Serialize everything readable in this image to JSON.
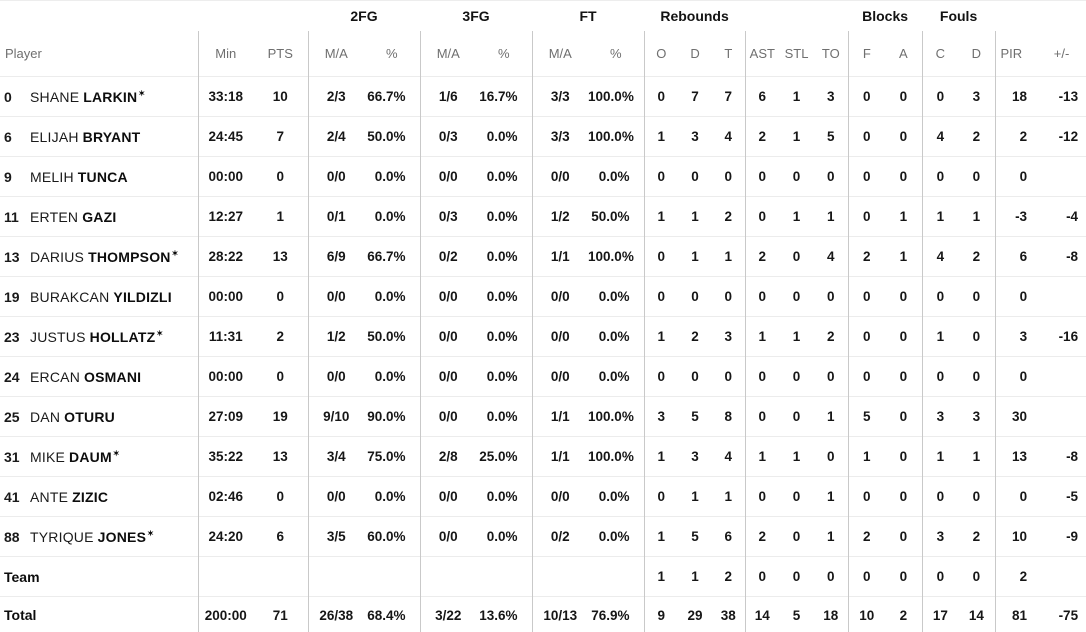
{
  "icons": {
    "starter_icon": "✶"
  },
  "colors": {
    "header_gray": "#6f6f6f",
    "divider": "#c9c9c9",
    "row_line": "#ececec",
    "text": "#131313"
  },
  "header": {
    "groups": {
      "fg2": "2FG",
      "fg3": "3FG",
      "ft": "FT",
      "rebounds": "Rebounds",
      "blocks": "Blocks",
      "fouls": "Fouls"
    },
    "player": "Player",
    "min": "Min",
    "pts": "PTS",
    "fg2_ma": "M/A",
    "fg2_pct": "%",
    "fg3_ma": "M/A",
    "fg3_pct": "%",
    "ft_ma": "M/A",
    "ft_pct": "%",
    "reb_o": "O",
    "reb_d": "D",
    "reb_t": "T",
    "ast": "AST",
    "stl": "STL",
    "to": "TO",
    "blk_f": "F",
    "blk_a": "A",
    "foul_c": "C",
    "foul_d": "D",
    "pir": "PIR",
    "pm": "+/-"
  },
  "rows": [
    {
      "type": "player",
      "number": "0",
      "first": "SHANE",
      "last": "LARKIN",
      "starter": true,
      "min": "33:18",
      "pts": "10",
      "fg2_ma": "2/3",
      "fg2_pct": "66.7%",
      "fg3_ma": "1/6",
      "fg3_pct": "16.7%",
      "ft_ma": "3/3",
      "ft_pct": "100.0%",
      "reb_o": "0",
      "reb_d": "7",
      "reb_t": "7",
      "ast": "6",
      "stl": "1",
      "to": "3",
      "blk_f": "0",
      "blk_a": "0",
      "foul_c": "0",
      "foul_d": "3",
      "pir": "18",
      "pm": "-13"
    },
    {
      "type": "player",
      "number": "6",
      "first": "ELIJAH",
      "last": "BRYANT",
      "starter": false,
      "min": "24:45",
      "pts": "7",
      "fg2_ma": "2/4",
      "fg2_pct": "50.0%",
      "fg3_ma": "0/3",
      "fg3_pct": "0.0%",
      "ft_ma": "3/3",
      "ft_pct": "100.0%",
      "reb_o": "1",
      "reb_d": "3",
      "reb_t": "4",
      "ast": "2",
      "stl": "1",
      "to": "5",
      "blk_f": "0",
      "blk_a": "0",
      "foul_c": "4",
      "foul_d": "2",
      "pir": "2",
      "pm": "-12"
    },
    {
      "type": "player",
      "number": "9",
      "first": "MELIH",
      "last": "TUNCA",
      "starter": false,
      "min": "00:00",
      "pts": "0",
      "fg2_ma": "0/0",
      "fg2_pct": "0.0%",
      "fg3_ma": "0/0",
      "fg3_pct": "0.0%",
      "ft_ma": "0/0",
      "ft_pct": "0.0%",
      "reb_o": "0",
      "reb_d": "0",
      "reb_t": "0",
      "ast": "0",
      "stl": "0",
      "to": "0",
      "blk_f": "0",
      "blk_a": "0",
      "foul_c": "0",
      "foul_d": "0",
      "pir": "0",
      "pm": ""
    },
    {
      "type": "player",
      "number": "11",
      "first": "ERTEN",
      "last": "GAZI",
      "starter": false,
      "min": "12:27",
      "pts": "1",
      "fg2_ma": "0/1",
      "fg2_pct": "0.0%",
      "fg3_ma": "0/3",
      "fg3_pct": "0.0%",
      "ft_ma": "1/2",
      "ft_pct": "50.0%",
      "reb_o": "1",
      "reb_d": "1",
      "reb_t": "2",
      "ast": "0",
      "stl": "1",
      "to": "1",
      "blk_f": "0",
      "blk_a": "1",
      "foul_c": "1",
      "foul_d": "1",
      "pir": "-3",
      "pm": "-4"
    },
    {
      "type": "player",
      "number": "13",
      "first": "DARIUS",
      "last": "THOMPSON",
      "starter": true,
      "min": "28:22",
      "pts": "13",
      "fg2_ma": "6/9",
      "fg2_pct": "66.7%",
      "fg3_ma": "0/2",
      "fg3_pct": "0.0%",
      "ft_ma": "1/1",
      "ft_pct": "100.0%",
      "reb_o": "0",
      "reb_d": "1",
      "reb_t": "1",
      "ast": "2",
      "stl": "0",
      "to": "4",
      "blk_f": "2",
      "blk_a": "1",
      "foul_c": "4",
      "foul_d": "2",
      "pir": "6",
      "pm": "-8"
    },
    {
      "type": "player",
      "number": "19",
      "first": "BURAKCAN",
      "last": "YILDIZLI",
      "starter": false,
      "min": "00:00",
      "pts": "0",
      "fg2_ma": "0/0",
      "fg2_pct": "0.0%",
      "fg3_ma": "0/0",
      "fg3_pct": "0.0%",
      "ft_ma": "0/0",
      "ft_pct": "0.0%",
      "reb_o": "0",
      "reb_d": "0",
      "reb_t": "0",
      "ast": "0",
      "stl": "0",
      "to": "0",
      "blk_f": "0",
      "blk_a": "0",
      "foul_c": "0",
      "foul_d": "0",
      "pir": "0",
      "pm": ""
    },
    {
      "type": "player",
      "number": "23",
      "first": "JUSTUS",
      "last": "HOLLATZ",
      "starter": true,
      "min": "11:31",
      "pts": "2",
      "fg2_ma": "1/2",
      "fg2_pct": "50.0%",
      "fg3_ma": "0/0",
      "fg3_pct": "0.0%",
      "ft_ma": "0/0",
      "ft_pct": "0.0%",
      "reb_o": "1",
      "reb_d": "2",
      "reb_t": "3",
      "ast": "1",
      "stl": "1",
      "to": "2",
      "blk_f": "0",
      "blk_a": "0",
      "foul_c": "1",
      "foul_d": "0",
      "pir": "3",
      "pm": "-16"
    },
    {
      "type": "player",
      "number": "24",
      "first": "ERCAN",
      "last": "OSMANI",
      "starter": false,
      "min": "00:00",
      "pts": "0",
      "fg2_ma": "0/0",
      "fg2_pct": "0.0%",
      "fg3_ma": "0/0",
      "fg3_pct": "0.0%",
      "ft_ma": "0/0",
      "ft_pct": "0.0%",
      "reb_o": "0",
      "reb_d": "0",
      "reb_t": "0",
      "ast": "0",
      "stl": "0",
      "to": "0",
      "blk_f": "0",
      "blk_a": "0",
      "foul_c": "0",
      "foul_d": "0",
      "pir": "0",
      "pm": ""
    },
    {
      "type": "player",
      "number": "25",
      "first": "DAN",
      "last": "OTURU",
      "starter": false,
      "min": "27:09",
      "pts": "19",
      "fg2_ma": "9/10",
      "fg2_pct": "90.0%",
      "fg3_ma": "0/0",
      "fg3_pct": "0.0%",
      "ft_ma": "1/1",
      "ft_pct": "100.0%",
      "reb_o": "3",
      "reb_d": "5",
      "reb_t": "8",
      "ast": "0",
      "stl": "0",
      "to": "1",
      "blk_f": "5",
      "blk_a": "0",
      "foul_c": "3",
      "foul_d": "3",
      "pir": "30",
      "pm": ""
    },
    {
      "type": "player",
      "number": "31",
      "first": "MIKE",
      "last": "DAUM",
      "starter": true,
      "min": "35:22",
      "pts": "13",
      "fg2_ma": "3/4",
      "fg2_pct": "75.0%",
      "fg3_ma": "2/8",
      "fg3_pct": "25.0%",
      "ft_ma": "1/1",
      "ft_pct": "100.0%",
      "reb_o": "1",
      "reb_d": "3",
      "reb_t": "4",
      "ast": "1",
      "stl": "1",
      "to": "0",
      "blk_f": "1",
      "blk_a": "0",
      "foul_c": "1",
      "foul_d": "1",
      "pir": "13",
      "pm": "-8"
    },
    {
      "type": "player",
      "number": "41",
      "first": "ANTE",
      "last": "ZIZIC",
      "starter": false,
      "min": "02:46",
      "pts": "0",
      "fg2_ma": "0/0",
      "fg2_pct": "0.0%",
      "fg3_ma": "0/0",
      "fg3_pct": "0.0%",
      "ft_ma": "0/0",
      "ft_pct": "0.0%",
      "reb_o": "0",
      "reb_d": "1",
      "reb_t": "1",
      "ast": "0",
      "stl": "0",
      "to": "1",
      "blk_f": "0",
      "blk_a": "0",
      "foul_c": "0",
      "foul_d": "0",
      "pir": "0",
      "pm": "-5"
    },
    {
      "type": "player",
      "number": "88",
      "first": "TYRIQUE",
      "last": "JONES",
      "starter": true,
      "min": "24:20",
      "pts": "6",
      "fg2_ma": "3/5",
      "fg2_pct": "60.0%",
      "fg3_ma": "0/0",
      "fg3_pct": "0.0%",
      "ft_ma": "0/2",
      "ft_pct": "0.0%",
      "reb_o": "1",
      "reb_d": "5",
      "reb_t": "6",
      "ast": "2",
      "stl": "0",
      "to": "1",
      "blk_f": "2",
      "blk_a": "0",
      "foul_c": "3",
      "foul_d": "2",
      "pir": "10",
      "pm": "-9"
    },
    {
      "type": "team",
      "label": "Team",
      "min": "",
      "pts": "",
      "fg2_ma": "",
      "fg2_pct": "",
      "fg3_ma": "",
      "fg3_pct": "",
      "ft_ma": "",
      "ft_pct": "",
      "reb_o": "1",
      "reb_d": "1",
      "reb_t": "2",
      "ast": "0",
      "stl": "0",
      "to": "0",
      "blk_f": "0",
      "blk_a": "0",
      "foul_c": "0",
      "foul_d": "0",
      "pir": "2",
      "pm": ""
    },
    {
      "type": "total",
      "label": "Total",
      "min": "200:00",
      "pts": "71",
      "fg2_ma": "26/38",
      "fg2_pct": "68.4%",
      "fg3_ma": "3/22",
      "fg3_pct": "13.6%",
      "ft_ma": "10/13",
      "ft_pct": "76.9%",
      "reb_o": "9",
      "reb_d": "29",
      "reb_t": "38",
      "ast": "14",
      "stl": "5",
      "to": "18",
      "blk_f": "10",
      "blk_a": "2",
      "foul_c": "17",
      "foul_d": "14",
      "pir": "81",
      "pm": "-75"
    }
  ]
}
